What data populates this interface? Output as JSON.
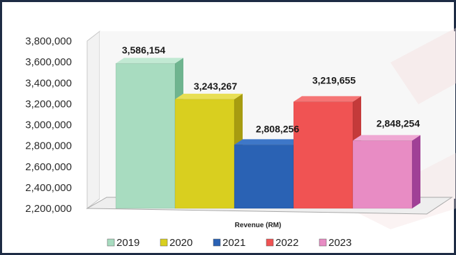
{
  "chart_data": {
    "type": "bar",
    "title": "",
    "xlabel": "Revenue (RM)",
    "ylabel": "",
    "ylim": [
      2200000,
      3800000
    ],
    "yticks": [
      2200000,
      2400000,
      2600000,
      2800000,
      3000000,
      3200000,
      3400000,
      3600000,
      3800000
    ],
    "ytick_labels": [
      "2,200,000",
      "2,400,000",
      "2,600,000",
      "2,800,000",
      "3,000,000",
      "3,200,000",
      "3,400,000",
      "3,600,000",
      "3,800,000"
    ],
    "categories": [
      "Revenue (RM)"
    ],
    "series": [
      {
        "name": "2019",
        "values": [
          3586154
        ],
        "label": "3,586,154",
        "color": "#a8dcc0",
        "side": "#6fb48f",
        "top": "#c2e9d3"
      },
      {
        "name": "2020",
        "values": [
          3243267
        ],
        "label": "3,243,267",
        "color": "#d9cf1f",
        "side": "#a79c10",
        "top": "#e8df55"
      },
      {
        "name": "2021",
        "values": [
          2808256
        ],
        "label": "2,808,256",
        "color": "#2a62b4",
        "side": "#1d4480",
        "top": "#3e77c8"
      },
      {
        "name": "2022",
        "values": [
          3219655
        ],
        "label": "3,219,655",
        "color": "#f05353",
        "side": "#c43a3a",
        "top": "#f57575"
      },
      {
        "name": "2023",
        "values": [
          2848254
        ],
        "label": "2,848,254",
        "color": "#e88cc4",
        "side": "#a04096",
        "top": "#efa8d3"
      }
    ],
    "grid": false,
    "legend": "bottom"
  }
}
